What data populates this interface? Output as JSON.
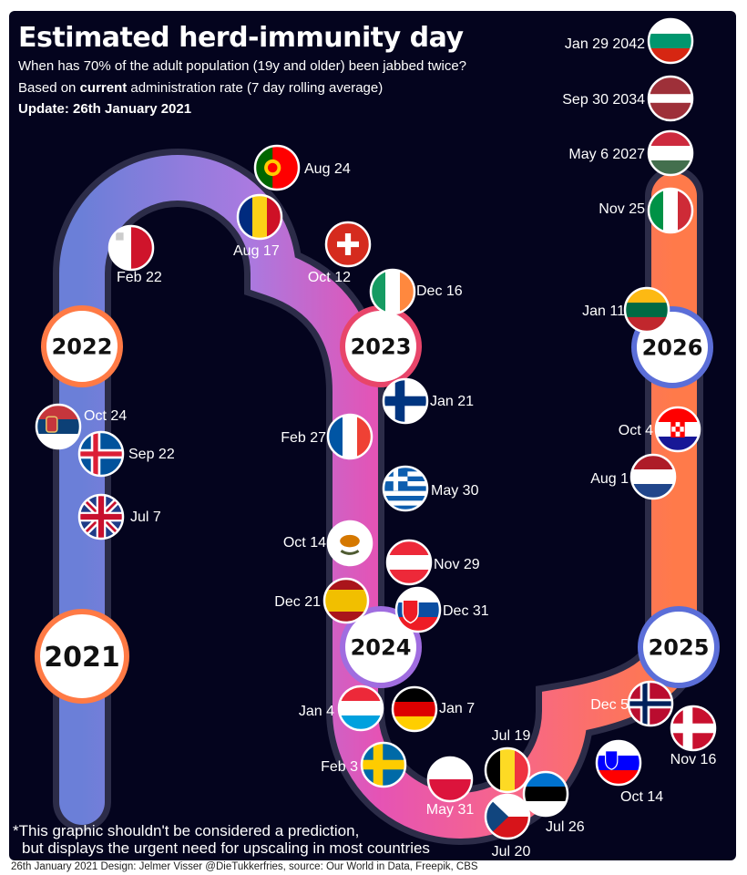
{
  "header": {
    "title": "Estimated herd-immunity day",
    "subtitle_1": "When has 70% of the adult population (19y and older) been jabbed twice?",
    "subtitle_2_pre": "Based on ",
    "subtitle_2_bold": "current",
    "subtitle_2_post": " administration rate (7 day rolling average)",
    "update": "Update: 26th January 2021"
  },
  "disclaimer": {
    "line1": "*This graphic shouldn't be considered a prediction,",
    "line2": "but displays the urgent need for upscaling in most countries"
  },
  "footer": "26th January 2021 Design: Jelmer Visser @DieTukkerfries, source: Our World in Data, Freepik, CBS",
  "colors": {
    "background": "#04041e",
    "track_start": "#6b7fd8",
    "track_mid": "#a97ae0",
    "track_pink": "#e553b5",
    "track_orange": "#ff7a4a",
    "ring_2021": "#ff7a45",
    "ring_2023": "#e8456a",
    "ring_2024": "#a06de0",
    "ring_2025": "#5b6ed8"
  },
  "chart_data": {
    "type": "timeline",
    "years": [
      "2021",
      "2022",
      "2023",
      "2024",
      "2025",
      "2026"
    ],
    "points": [
      {
        "country": "United Kingdom",
        "flag": "gb-flag",
        "date": "Jul 7"
      },
      {
        "country": "Iceland",
        "flag": "is-flag",
        "date": "Sep 22"
      },
      {
        "country": "Serbia",
        "flag": "rs-flag",
        "date": "Oct 24"
      },
      {
        "country": "Malta",
        "flag": "mt-flag",
        "date": "Feb 22"
      },
      {
        "country": "Romania",
        "flag": "ro-flag",
        "date": "Aug 17"
      },
      {
        "country": "Portugal",
        "flag": "pt-flag",
        "date": "Aug 24"
      },
      {
        "country": "Switzerland",
        "flag": "ch-flag",
        "date": "Oct 12"
      },
      {
        "country": "Ireland",
        "flag": "ie-flag",
        "date": "Dec 16"
      },
      {
        "country": "Finland",
        "flag": "fi-flag",
        "date": "Jan 21"
      },
      {
        "country": "France",
        "flag": "fr-flag",
        "date": "Feb 27"
      },
      {
        "country": "Greece",
        "flag": "gr-flag",
        "date": "May 30"
      },
      {
        "country": "Cyprus",
        "flag": "cy-flag",
        "date": "Oct 14"
      },
      {
        "country": "Austria",
        "flag": "at-flag",
        "date": "Nov 29"
      },
      {
        "country": "Spain",
        "flag": "es-flag",
        "date": "Dec 21"
      },
      {
        "country": "Slovakia",
        "flag": "sk-flag",
        "date": "Dec 31"
      },
      {
        "country": "Luxembourg",
        "flag": "lu-flag",
        "date": "Jan 4"
      },
      {
        "country": "Germany",
        "flag": "de-flag",
        "date": "Jan 7"
      },
      {
        "country": "Sweden",
        "flag": "se-flag",
        "date": "Feb 3"
      },
      {
        "country": "Poland",
        "flag": "pl-flag",
        "date": "May 31"
      },
      {
        "country": "Belgium",
        "flag": "be-flag",
        "date": "Jul 19"
      },
      {
        "country": "Czech Republic",
        "flag": "cz-flag",
        "date": "Jul 20"
      },
      {
        "country": "Estonia",
        "flag": "ee-flag",
        "date": "Jul 26"
      },
      {
        "country": "Slovenia",
        "flag": "si-flag",
        "date": "Oct 14"
      },
      {
        "country": "Denmark",
        "flag": "dk-flag",
        "date": "Nov 16"
      },
      {
        "country": "Norway",
        "flag": "no-flag",
        "date": "Dec 5"
      },
      {
        "country": "Netherlands",
        "flag": "nl-flag",
        "date": "Aug 1"
      },
      {
        "country": "Croatia",
        "flag": "hr-flag",
        "date": "Oct 4"
      },
      {
        "country": "Lithuania",
        "flag": "lt-flag",
        "date": "Jan 11"
      },
      {
        "country": "Italy",
        "flag": "it-flag",
        "date": "Nov 25"
      },
      {
        "country": "Hungary",
        "flag": "hu-flag",
        "date": "May 6 2027"
      },
      {
        "country": "Latvia",
        "flag": "lv-flag",
        "date": "Sep 30 2034"
      },
      {
        "country": "Bulgaria",
        "flag": "bg-flag",
        "date": "Jan 29 2042"
      }
    ]
  }
}
